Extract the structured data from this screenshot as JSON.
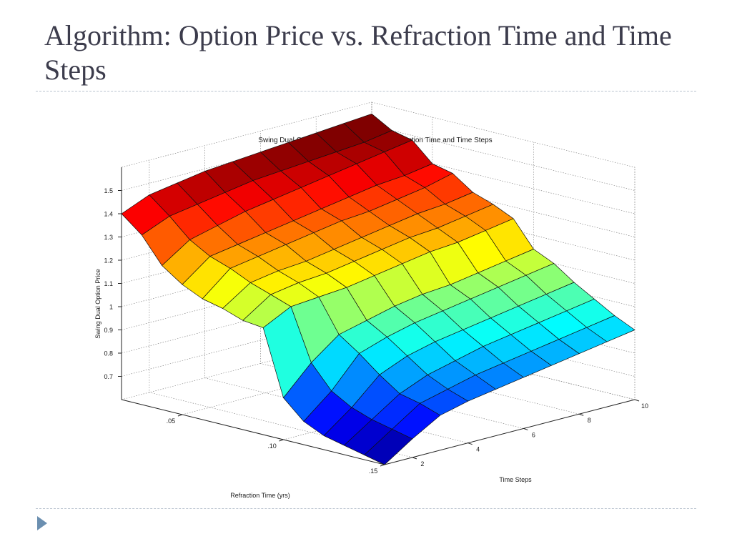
{
  "slide": {
    "title": "Algorithm: Option Price vs. Refraction Time and Time Steps",
    "accent_color": "#6b8fb0"
  },
  "chart_data": {
    "type": "surface",
    "title": "Swing Dual Option Price as a Function of Refraction Time and Time Steps",
    "xlabel": "Refraction Time (yrs)",
    "ylabel": "Time Steps",
    "zlabel": "Swing Dual Option Price",
    "refraction_times": [
      0.02,
      0.03,
      0.04,
      0.05,
      0.06,
      0.07,
      0.08,
      0.09,
      0.1,
      0.11,
      0.12,
      0.13,
      0.14,
      0.15
    ],
    "time_steps": [
      1,
      2,
      3,
      4,
      5,
      6,
      7,
      8,
      9,
      10
    ],
    "z": [
      [
        1.4,
        1.45,
        1.47,
        1.49,
        1.5,
        1.51,
        1.52,
        1.53,
        1.54,
        1.55
      ],
      [
        1.33,
        1.38,
        1.4,
        1.42,
        1.44,
        1.45,
        1.46,
        1.47,
        1.48,
        1.5
      ],
      [
        1.22,
        1.3,
        1.33,
        1.36,
        1.38,
        1.4,
        1.42,
        1.44,
        1.46,
        1.48
      ],
      [
        1.16,
        1.25,
        1.27,
        1.29,
        1.31,
        1.33,
        1.35,
        1.37,
        1.38,
        1.4
      ],
      [
        1.12,
        1.22,
        1.24,
        1.26,
        1.28,
        1.3,
        1.31,
        1.33,
        1.35,
        1.38
      ],
      [
        1.1,
        1.18,
        1.2,
        1.21,
        1.23,
        1.25,
        1.27,
        1.29,
        1.3,
        1.32
      ],
      [
        1.07,
        1.15,
        1.17,
        1.18,
        1.2,
        1.22,
        1.24,
        1.25,
        1.27,
        1.29
      ],
      [
        1.06,
        1.12,
        1.13,
        1.14,
        1.16,
        1.18,
        1.2,
        1.21,
        1.23,
        1.25
      ],
      [
        0.78,
        0.9,
        0.99,
        1.02,
        1.05,
        1.07,
        1.08,
        1.1,
        1.12,
        1.14
      ],
      [
        0.7,
        0.8,
        0.93,
        0.97,
        1.0,
        1.02,
        1.04,
        1.06,
        1.08,
        1.1
      ],
      [
        0.66,
        0.75,
        0.86,
        0.91,
        0.94,
        0.96,
        0.98,
        1.0,
        1.02,
        1.04
      ],
      [
        0.64,
        0.72,
        0.8,
        0.85,
        0.88,
        0.91,
        0.93,
        0.95,
        0.97,
        0.99
      ],
      [
        0.62,
        0.7,
        0.78,
        0.81,
        0.84,
        0.86,
        0.88,
        0.9,
        0.92,
        0.94
      ],
      [
        0.6,
        0.68,
        0.75,
        0.78,
        0.8,
        0.82,
        0.84,
        0.86,
        0.88,
        0.9
      ]
    ],
    "x_ticks": [
      {
        "value": 0.05,
        "label": ".05"
      },
      {
        "value": 0.1,
        "label": ".10"
      },
      {
        "value": 0.15,
        "label": ".15"
      }
    ],
    "y_ticks": [
      2,
      4,
      6,
      8,
      10
    ],
    "z_ticks": [
      0.7,
      0.8,
      0.9,
      1,
      1.1,
      1.2,
      1.3,
      1.4,
      1.5
    ],
    "z_range": [
      0.6,
      1.6
    ],
    "colormap": "jet",
    "color_range": [
      0.6,
      1.5
    ],
    "grid": true
  }
}
